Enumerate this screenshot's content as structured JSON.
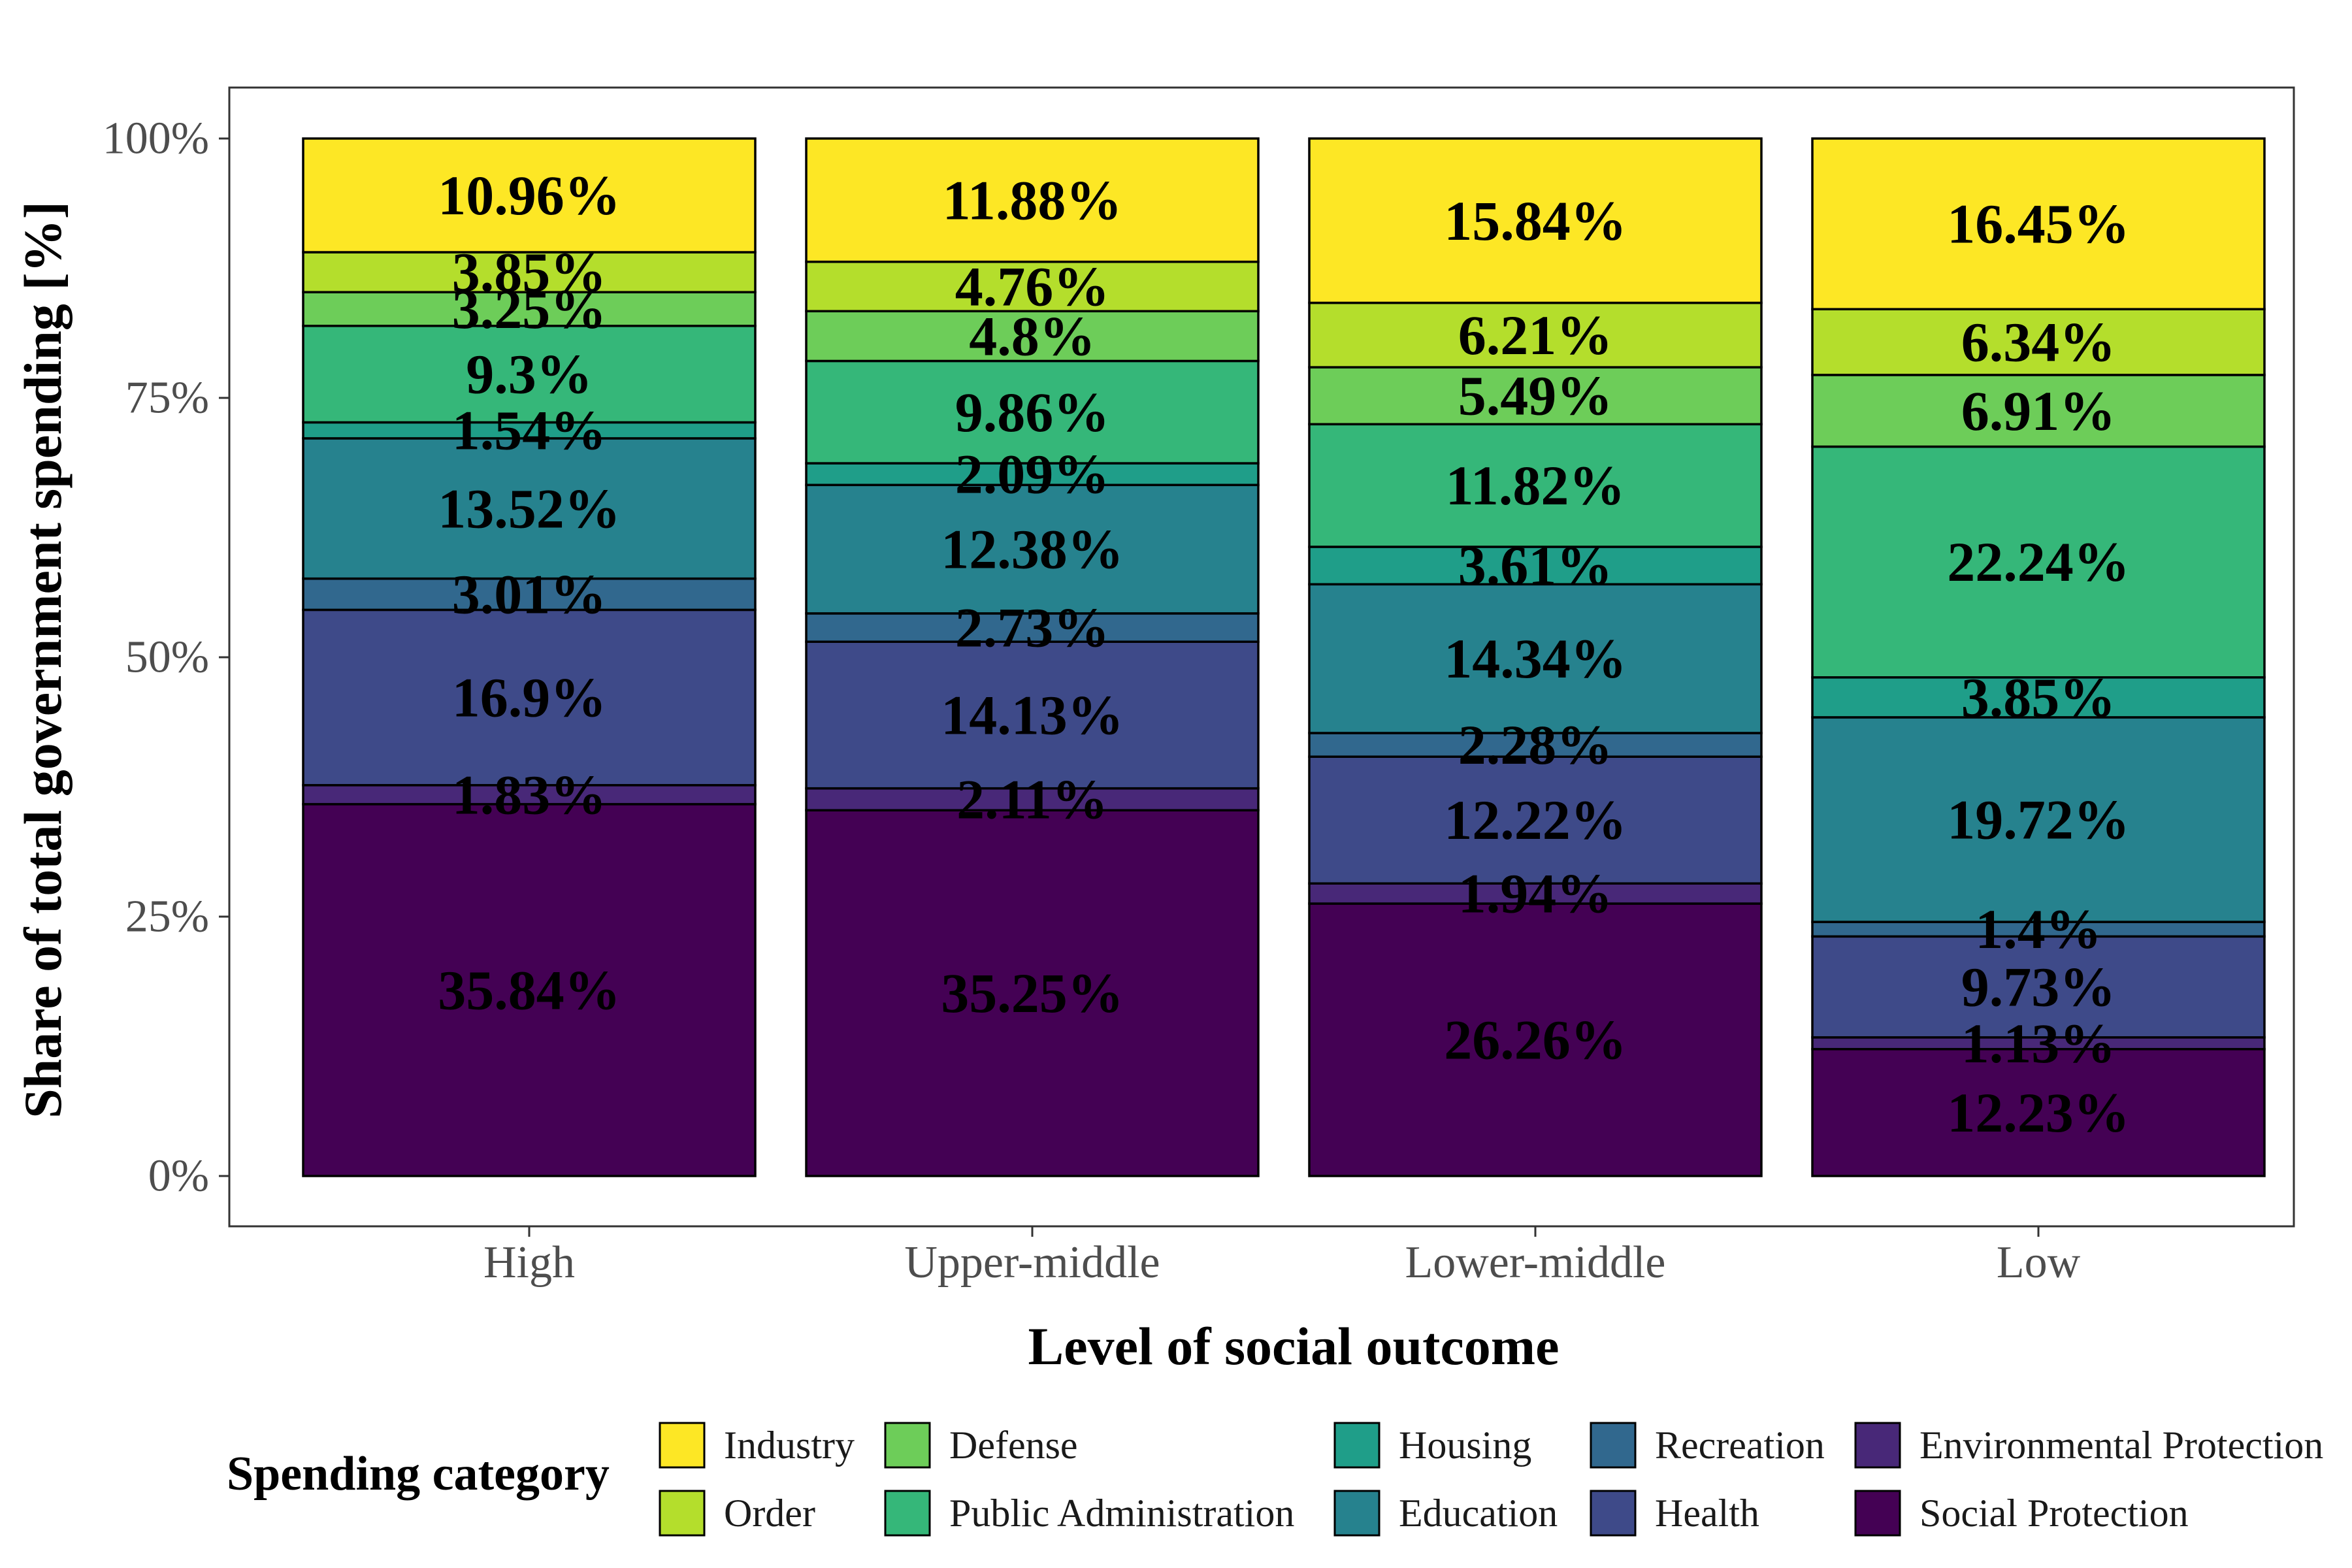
{
  "chart_data": {
    "type": "bar",
    "stacked": true,
    "xlabel": "Level of social outcome",
    "ylabel": "Share of total government spending [%]",
    "ylim": [
      0,
      100
    ],
    "yticks": [
      "0%",
      "25%",
      "50%",
      "75%",
      "100%"
    ],
    "grid": false,
    "legend": {
      "title": "Spending category",
      "position": "bottom"
    },
    "categories": [
      "High",
      "Upper-middle",
      "Lower-middle",
      "Low"
    ],
    "series": [
      {
        "name": "Social Protection",
        "color": "#440154",
        "values": [
          35.84,
          35.25,
          26.26,
          12.23
        ]
      },
      {
        "name": "Environmental Protection",
        "color": "#482878",
        "values": [
          1.83,
          2.11,
          1.94,
          1.13
        ]
      },
      {
        "name": "Health",
        "color": "#3E4A89",
        "values": [
          16.9,
          14.13,
          12.22,
          9.73
        ]
      },
      {
        "name": "Recreation",
        "color": "#31688E",
        "values": [
          3.01,
          2.73,
          2.28,
          1.4
        ]
      },
      {
        "name": "Education",
        "color": "#26828E",
        "values": [
          13.52,
          12.38,
          14.34,
          19.72
        ]
      },
      {
        "name": "Housing",
        "color": "#1F9E89",
        "values": [
          1.54,
          2.09,
          3.61,
          3.85
        ]
      },
      {
        "name": "Public Administration",
        "color": "#35B779",
        "values": [
          9.3,
          9.86,
          11.82,
          22.24
        ]
      },
      {
        "name": "Defense",
        "color": "#6DCD59",
        "values": [
          3.25,
          4.8,
          5.49,
          6.91
        ]
      },
      {
        "name": "Order",
        "color": "#B4DE2C",
        "values": [
          3.85,
          4.76,
          6.21,
          6.34
        ]
      },
      {
        "name": "Industry",
        "color": "#FDE725",
        "values": [
          10.96,
          11.88,
          15.84,
          16.45
        ]
      }
    ],
    "labels": [
      [
        "35.84%",
        "35.25%",
        "26.26%",
        "12.23%"
      ],
      [
        "1.83%",
        "2.11%",
        "1.94%",
        "1.13%"
      ],
      [
        "16.9%",
        "14.13%",
        "12.22%",
        "9.73%"
      ],
      [
        "3.01%",
        "2.73%",
        "2.28%",
        "1.4%"
      ],
      [
        "13.52%",
        "12.38%",
        "14.34%",
        "19.72%"
      ],
      [
        "1.54%",
        "2.09%",
        "3.61%",
        "3.85%"
      ],
      [
        "9.3%",
        "9.86%",
        "11.82%",
        "22.24%"
      ],
      [
        "3.25%",
        "4.8%",
        "5.49%",
        "6.91%"
      ],
      [
        "3.85%",
        "4.76%",
        "6.21%",
        "6.34%"
      ],
      [
        "10.96%",
        "11.88%",
        "15.84%",
        "16.45%"
      ]
    ],
    "legend_order": [
      "Industry",
      "Order",
      "Defense",
      "Public Administration",
      "Housing",
      "Education",
      "Recreation",
      "Health",
      "Environmental Protection",
      "Social Protection"
    ]
  }
}
